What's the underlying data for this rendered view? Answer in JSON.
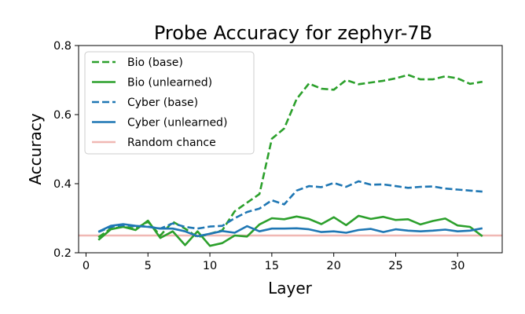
{
  "chart_data": {
    "type": "line",
    "title": "Probe Accuracy for zephyr-7B",
    "xlabel": "Layer",
    "ylabel": "Accuracy",
    "xlim": [
      -0.6,
      33.6
    ],
    "ylim": [
      0.2,
      0.8
    ],
    "xticks": [
      "0",
      "5",
      "10",
      "15",
      "20",
      "25",
      "30"
    ],
    "yticks": [
      "0.2",
      "0.4",
      "0.6",
      "0.8"
    ],
    "grid": false,
    "legend_position": "upper-left",
    "x": [
      1,
      2,
      3,
      4,
      5,
      6,
      7,
      8,
      9,
      10,
      11,
      12,
      13,
      14,
      15,
      16,
      17,
      18,
      19,
      20,
      21,
      22,
      23,
      24,
      25,
      26,
      27,
      28,
      29,
      30,
      31,
      32
    ],
    "series": [
      {
        "name": "Bio (base)",
        "color": "#2ca02c",
        "style": "dashed",
        "values": [
          0.245,
          0.27,
          0.275,
          0.27,
          0.29,
          0.25,
          0.29,
          0.27,
          0.245,
          0.255,
          0.265,
          0.32,
          0.345,
          0.37,
          0.53,
          0.56,
          0.645,
          0.69,
          0.675,
          0.672,
          0.7,
          0.688,
          0.693,
          0.698,
          0.705,
          0.715,
          0.702,
          0.702,
          0.711,
          0.705,
          0.689,
          0.695
        ]
      },
      {
        "name": "Bio (unlearned)",
        "color": "#2ca02c",
        "style": "solid",
        "values": [
          0.237,
          0.268,
          0.275,
          0.266,
          0.293,
          0.243,
          0.262,
          0.222,
          0.262,
          0.22,
          0.228,
          0.25,
          0.247,
          0.282,
          0.3,
          0.297,
          0.305,
          0.298,
          0.283,
          0.303,
          0.28,
          0.307,
          0.298,
          0.304,
          0.295,
          0.297,
          0.282,
          0.292,
          0.299,
          0.279,
          0.275,
          0.248
        ]
      },
      {
        "name": "Cyber (base)",
        "color": "#1f77b4",
        "style": "dashed",
        "values": [
          0.26,
          0.275,
          0.28,
          0.277,
          0.276,
          0.27,
          0.285,
          0.275,
          0.27,
          0.276,
          0.278,
          0.3,
          0.318,
          0.328,
          0.352,
          0.34,
          0.38,
          0.393,
          0.39,
          0.402,
          0.391,
          0.407,
          0.397,
          0.398,
          0.393,
          0.388,
          0.391,
          0.392,
          0.386,
          0.383,
          0.38,
          0.377
        ]
      },
      {
        "name": "Cyber (unlearned)",
        "color": "#1f77b4",
        "style": "solid",
        "values": [
          0.261,
          0.278,
          0.283,
          0.278,
          0.275,
          0.27,
          0.27,
          0.262,
          0.248,
          0.255,
          0.263,
          0.258,
          0.277,
          0.262,
          0.27,
          0.27,
          0.271,
          0.268,
          0.26,
          0.262,
          0.258,
          0.266,
          0.269,
          0.26,
          0.268,
          0.264,
          0.262,
          0.264,
          0.267,
          0.262,
          0.264,
          0.271
        ]
      }
    ],
    "reference_line": {
      "name": "Random chance",
      "value": 0.25,
      "color": "#f0b8b4"
    }
  }
}
